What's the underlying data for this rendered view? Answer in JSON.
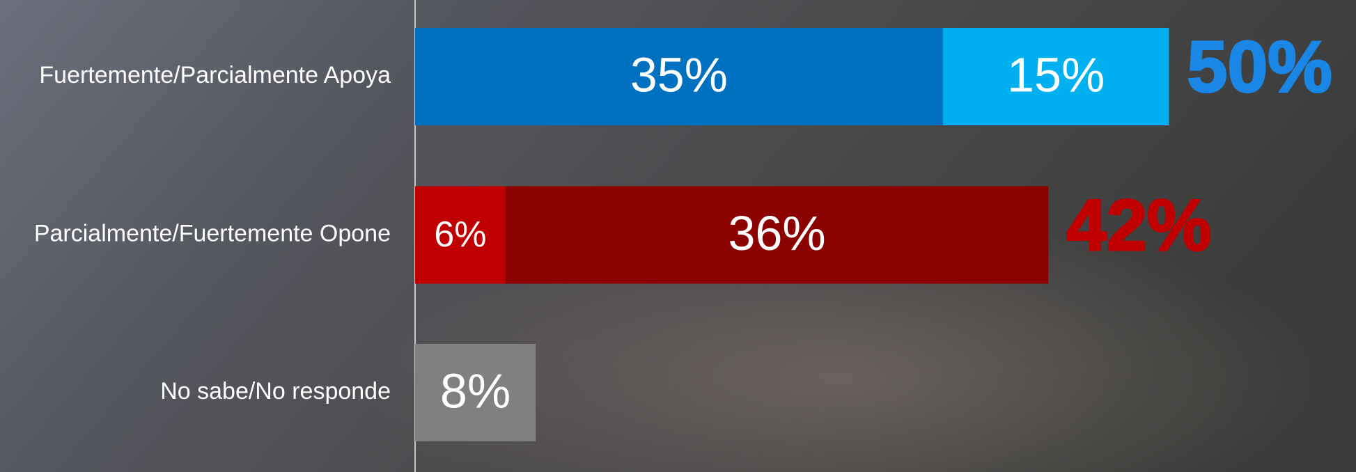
{
  "chart_data": {
    "type": "stacked-bar-horizontal",
    "categories": [
      "Fuertemente/Parcialmente Apoya",
      "Parcialmente/Fuertemente Opone",
      "No sabe/No responde"
    ],
    "series": [
      {
        "values": [
          35,
          6,
          8
        ],
        "value_labels": [
          "35%",
          "6%",
          "8%"
        ],
        "colors": [
          "#0070c0",
          "#c00000",
          "#808080"
        ]
      },
      {
        "values": [
          15,
          36,
          null
        ],
        "value_labels": [
          "15%",
          "36%",
          null
        ],
        "colors": [
          "#00b0f0",
          "#8b0000",
          null
        ]
      }
    ],
    "totals": [
      50,
      42,
      null
    ],
    "total_labels": [
      "50%",
      "42%",
      null
    ],
    "total_colors": [
      "#1a86e6",
      "#c00000",
      null
    ],
    "xlim": [
      0,
      62.4
    ]
  }
}
